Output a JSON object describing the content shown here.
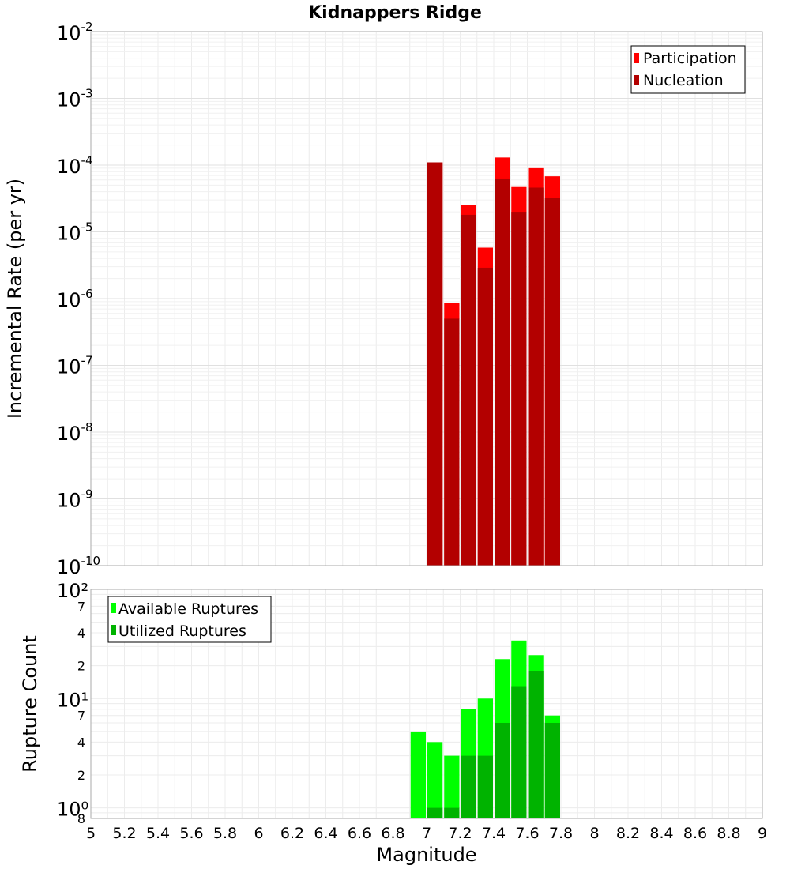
{
  "chart_data": [
    {
      "type": "bar",
      "title": "Kidnappers Ridge",
      "ylabel": "Incremental Rate (per yr)",
      "xlabel": "",
      "xlim": [
        5,
        9
      ],
      "ylim": [
        1e-10,
        0.01
      ],
      "yscale": "log",
      "ytick_labels": [
        "10-10",
        "10-9",
        "10-8",
        "10-7",
        "10-6",
        "10-5",
        "10-4",
        "10-3",
        "10-2"
      ],
      "legend": {
        "position": "top-right",
        "entries": [
          "Participation",
          "Nucleation"
        ]
      },
      "colors": {
        "participation": "#ff0000",
        "nucleation": "#b30000"
      },
      "x": [
        7.0,
        7.1,
        7.2,
        7.3,
        7.4,
        7.5,
        7.6,
        7.7
      ],
      "series": [
        {
          "name": "Participation",
          "values": [
            0.00011,
            8.5e-07,
            2.5e-05,
            5.8e-06,
            0.00013,
            4.7e-05,
            9e-05,
            6.8e-05
          ]
        },
        {
          "name": "Nucleation",
          "values": [
            0.00011,
            5e-07,
            1.8e-05,
            2.9e-06,
            6.3e-05,
            2e-05,
            4.6e-05,
            3.2e-05
          ]
        }
      ]
    },
    {
      "type": "bar",
      "title": "",
      "ylabel": "Rupture Count",
      "xlabel": "Magnitude",
      "xlim": [
        5,
        9
      ],
      "ylim": [
        0.8,
        100
      ],
      "yscale": "log",
      "xtick_labels": [
        "5",
        "5.2",
        "5.4",
        "5.6",
        "5.8",
        "6",
        "6.2",
        "6.4",
        "6.6",
        "6.8",
        "7",
        "7.2",
        "7.4",
        "7.6",
        "7.8",
        "8",
        "8.2",
        "8.4",
        "8.6",
        "8.8",
        "9"
      ],
      "ytick_labels": [
        "10⁰",
        "10¹",
        "10²"
      ],
      "minor_tick_labels": [
        "8",
        "2",
        "4",
        "7",
        "2",
        "4",
        "7"
      ],
      "legend": {
        "position": "top-left",
        "entries": [
          "Available Ruptures",
          "Utilized Ruptures"
        ]
      },
      "colors": {
        "available": "#00ff00",
        "utilized": "#00b300"
      },
      "x": [
        6.9,
        7.0,
        7.1,
        7.2,
        7.3,
        7.4,
        7.5,
        7.6,
        7.7
      ],
      "series": [
        {
          "name": "Available Ruptures",
          "values": [
            5,
            4,
            3,
            8,
            10,
            23,
            34,
            25,
            7
          ]
        },
        {
          "name": "Utilized Ruptures",
          "values": [
            0,
            1,
            1,
            3,
            3,
            6,
            13,
            18,
            6
          ]
        }
      ]
    }
  ]
}
